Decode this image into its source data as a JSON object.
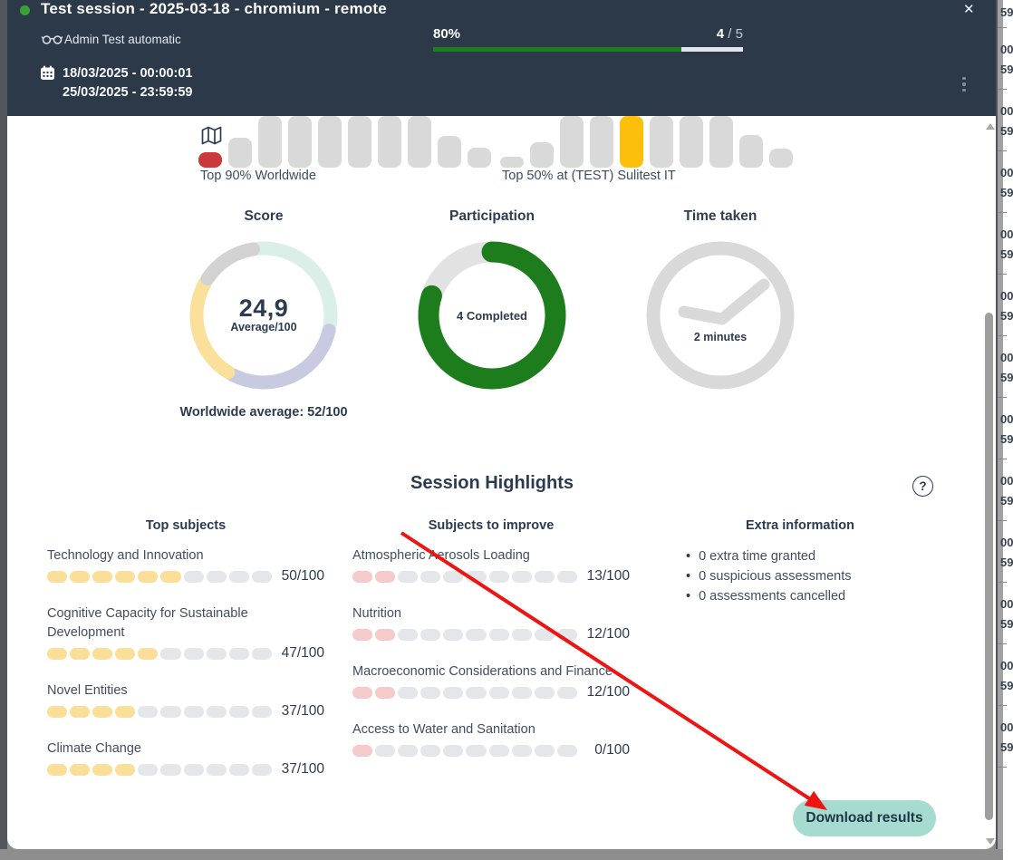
{
  "header": {
    "title": "Test session - 2025-03-18 - chromium - remote",
    "owner": "Admin Test automatic",
    "date_start": "18/03/2025 - 00:00:01",
    "date_end": "25/03/2025 - 23:59:59",
    "progress": {
      "percent_label": "80%",
      "percent": 80,
      "current": "4",
      "of_total": " / 5"
    },
    "close_glyph": "✕"
  },
  "percentiles": {
    "bar_color": "#d9d9d9",
    "worldwide": {
      "label": "Top 90% Worldwide",
      "bar_heights": [
        17,
        33,
        57,
        57,
        57,
        57,
        57,
        57,
        35,
        22
      ],
      "highlight_index": 0,
      "highlight_color": "#cb3a3a"
    },
    "school": {
      "label": "Top 50% at (TEST) Sulitest IT",
      "bar_heights": [
        12,
        28,
        57,
        57,
        57,
        57,
        57,
        57,
        36,
        21
      ],
      "highlight_index": 4,
      "highlight_color": "#fcc00b"
    }
  },
  "kpis": {
    "score": {
      "title": "Score",
      "value": "24,9",
      "unit": "Average/100",
      "footnote": "Worldwide average: 52/100",
      "segments": [
        {
          "color": "#d9efe7",
          "start": -6,
          "end": 99
        },
        {
          "color": "#c8cae2",
          "start": 103,
          "end": 208
        },
        {
          "color": "#fae09a",
          "start": 212,
          "end": 299
        },
        {
          "color": "#d2d2d2",
          "start": 303,
          "end": 351
        }
      ]
    },
    "participation": {
      "title": "Participation",
      "label": "4 Completed",
      "percent": 80,
      "color": "#1d7d1d",
      "track_color": "#e2e2e2"
    },
    "time": {
      "title": "Time taken",
      "label": "2 minutes"
    }
  },
  "highlights": {
    "title": "Session Highlights",
    "help_glyph": "?",
    "pills_total": 10,
    "top_subjects": {
      "title": "Top subjects",
      "fill_color": "#fbdf99",
      "empty_color": "#e4e7ea",
      "items": [
        {
          "label": "Technology and Innovation",
          "score": "50/100",
          "filled": 6
        },
        {
          "label": "Cognitive Capacity for Sustainable Development",
          "score": "47/100",
          "filled": 5
        },
        {
          "label": "Novel Entities",
          "score": "37/100",
          "filled": 4
        },
        {
          "label": "Climate Change",
          "score": "37/100",
          "filled": 4
        }
      ]
    },
    "improve_subjects": {
      "title": "Subjects to improve",
      "fill_color": "#f5caca",
      "empty_color": "#e4e7ea",
      "items": [
        {
          "label": "Atmospheric Aerosols Loading",
          "score": "13/100",
          "filled": 2
        },
        {
          "label": "Nutrition",
          "score": "12/100",
          "filled": 2
        },
        {
          "label": "Macroeconomic Considerations and Finance",
          "score": "12/100",
          "filled": 2
        },
        {
          "label": "Access to Water and Sanitation",
          "score": "0/100",
          "filled": 1
        }
      ]
    },
    "extra": {
      "title": "Extra information",
      "bullets": [
        "0 extra time granted",
        "0 suspicious assessments",
        "0 assessments cancelled"
      ]
    }
  },
  "footer": {
    "download_label": "Download results"
  },
  "background": {
    "clipped_cell_fragments": [
      "00",
      "59"
    ]
  }
}
